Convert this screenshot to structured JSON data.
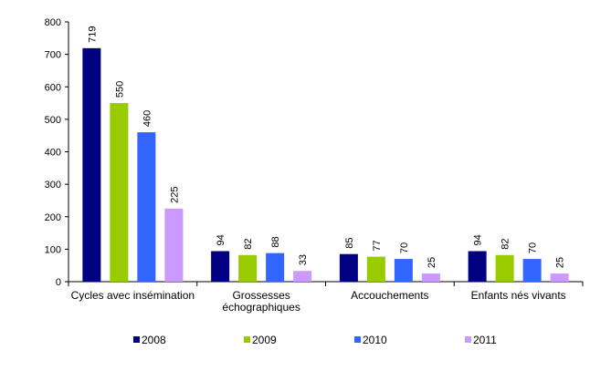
{
  "chart_data": {
    "type": "bar",
    "title": "",
    "xlabel": "",
    "ylabel": "",
    "categories": [
      [
        "Cycles avec insémination"
      ],
      [
        "Grossesses",
        "échographiques"
      ],
      [
        "Accouchements"
      ],
      [
        "Enfants nés vivants"
      ]
    ],
    "series": [
      {
        "name": "2008",
        "color": "#000080",
        "values": [
          719,
          94,
          85,
          94
        ]
      },
      {
        "name": "2009",
        "color": "#99cc00",
        "values": [
          550,
          82,
          77,
          82
        ]
      },
      {
        "name": "2010",
        "color": "#3366ff",
        "values": [
          460,
          88,
          70,
          70
        ]
      },
      {
        "name": "2011",
        "color": "#cc99ff",
        "values": [
          225,
          33,
          25,
          25
        ]
      }
    ],
    "ylim": [
      0,
      800
    ],
    "yticks": [
      0,
      100,
      200,
      300,
      400,
      500,
      600,
      700,
      800
    ],
    "grid": false,
    "legend": "bottom"
  }
}
